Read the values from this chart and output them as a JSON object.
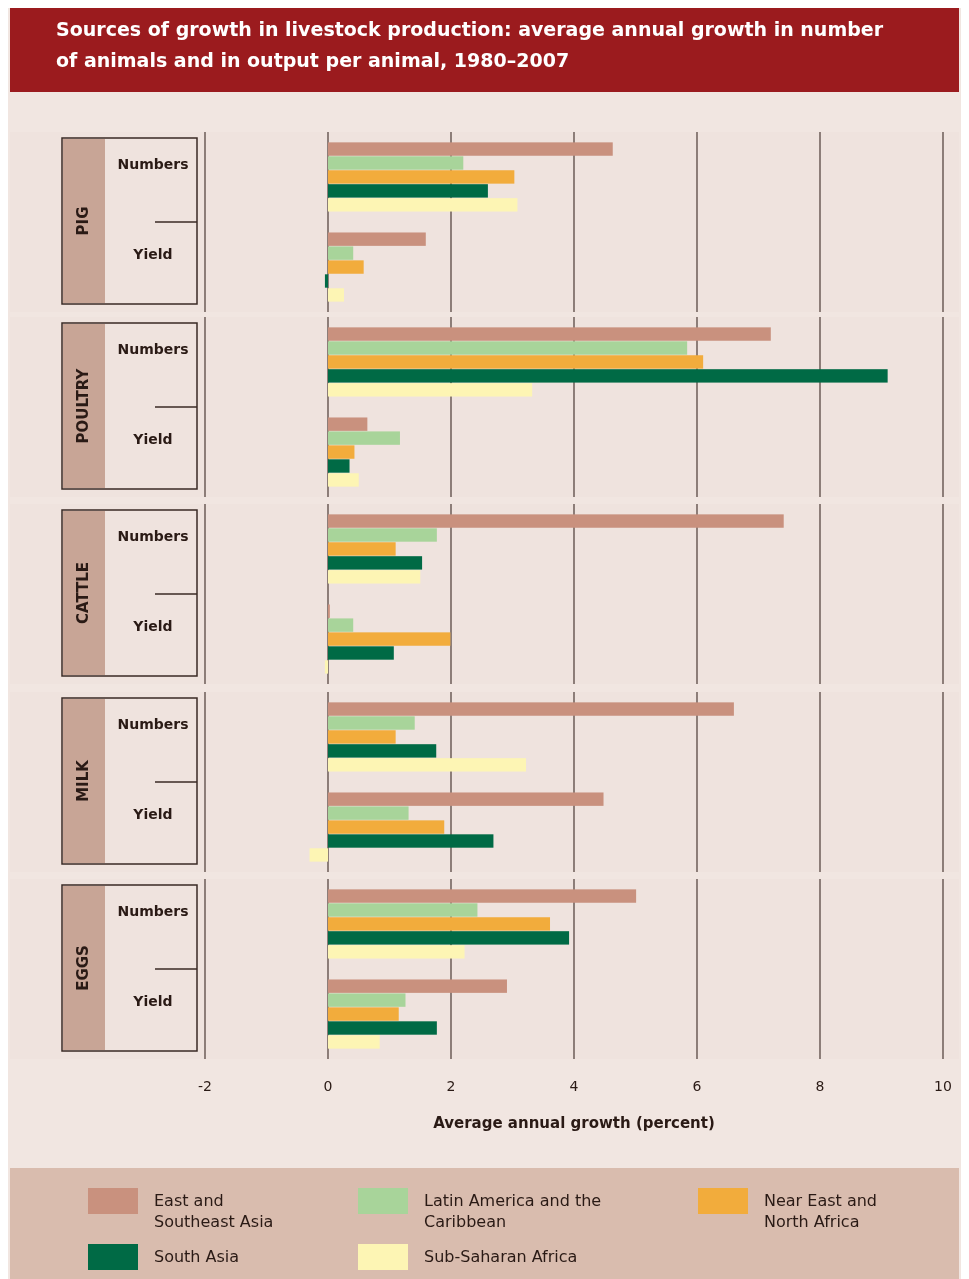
{
  "chart_data": [
    {
      "type": "bar",
      "orientation": "horizontal",
      "title": "Sources of growth in livestock production: average annual growth in number of animals and in output per animal, 1980–2007",
      "ylabel": "PIG",
      "categories": [
        "Numbers",
        "Yield"
      ],
      "xlim": [
        -2,
        10
      ],
      "xticks": [
        -2,
        0,
        2,
        4,
        6,
        8,
        10
      ],
      "grid": "x",
      "tick_labels": "y",
      "series": [
        {
          "color": "#c9917e",
          "values": [
            4.63,
            1.59
          ]
        },
        {
          "color": "#a8d49a",
          "values": [
            2.2,
            0.41
          ]
        },
        {
          "color": "#f2ac3c",
          "values": [
            3.03,
            0.58
          ]
        },
        {
          "color": "#006a45",
          "values": [
            2.6,
            -0.05
          ]
        },
        {
          "color": "#fdf5b4",
          "values": [
            3.08,
            0.26
          ]
        }
      ]
    },
    {
      "type": "bar",
      "orientation": "horizontal",
      "ylabel": "POULTRY",
      "categories": [
        "Numbers",
        "Yield"
      ],
      "xlim": [
        -2,
        10
      ],
      "xticks": [
        -2,
        0,
        2,
        4,
        6,
        8,
        10
      ],
      "grid": "x",
      "tick_labels": "y",
      "series": [
        {
          "color": "#c9917e",
          "values": [
            7.2,
            0.64
          ]
        },
        {
          "color": "#a8d49a",
          "values": [
            5.84,
            1.17
          ]
        },
        {
          "color": "#f2ac3c",
          "values": [
            6.1,
            0.43
          ]
        },
        {
          "color": "#006a45",
          "values": [
            9.1,
            0.35
          ]
        },
        {
          "color": "#fdf5b4",
          "values": [
            3.32,
            0.5
          ]
        }
      ]
    },
    {
      "type": "bar",
      "orientation": "horizontal",
      "ylabel": "CATTLE",
      "categories": [
        "Numbers",
        "Yield"
      ],
      "xlim": [
        -2,
        10
      ],
      "xticks": [
        -2,
        0,
        2,
        4,
        6,
        8,
        10
      ],
      "grid": "x",
      "tick_labels": "y",
      "series": [
        {
          "color": "#c9917e",
          "values": [
            7.41,
            0.03
          ]
        },
        {
          "color": "#a8d49a",
          "values": [
            1.77,
            0.41
          ]
        },
        {
          "color": "#f2ac3c",
          "values": [
            1.1,
            1.99
          ]
        },
        {
          "color": "#006a45",
          "values": [
            1.53,
            1.07
          ]
        },
        {
          "color": "#fdf5b4",
          "values": [
            1.5,
            -0.05
          ]
        }
      ]
    },
    {
      "type": "bar",
      "orientation": "horizontal",
      "ylabel": "MILK",
      "categories": [
        "Numbers",
        "Yield"
      ],
      "xlim": [
        -2,
        10
      ],
      "xticks": [
        -2,
        0,
        2,
        4,
        6,
        8,
        10
      ],
      "grid": "x",
      "tick_labels": "y",
      "series": [
        {
          "color": "#c9917e",
          "values": [
            6.6,
            4.48
          ]
        },
        {
          "color": "#a8d49a",
          "values": [
            1.41,
            1.31
          ]
        },
        {
          "color": "#f2ac3c",
          "values": [
            1.1,
            1.89
          ]
        },
        {
          "color": "#006a45",
          "values": [
            1.76,
            2.69
          ]
        },
        {
          "color": "#fdf5b4",
          "values": [
            3.22,
            -0.3
          ]
        }
      ]
    },
    {
      "type": "bar",
      "orientation": "horizontal",
      "ylabel": "EGGS",
      "xlabel": "Average annual growth (percent)",
      "categories": [
        "Numbers",
        "Yield"
      ],
      "xlim": [
        -2,
        10
      ],
      "xticks": [
        -2,
        0,
        2,
        4,
        6,
        8,
        10
      ],
      "grid": "x",
      "legend": "bottom",
      "series": [
        {
          "name": "East and Southeast Asia",
          "color": "#c9917e",
          "values": [
            5.01,
            2.91
          ]
        },
        {
          "name": "Latin America and the Caribbean",
          "color": "#a8d49a",
          "values": [
            2.43,
            1.26
          ]
        },
        {
          "name": "Near East and North Africa",
          "color": "#f2ac3c",
          "values": [
            3.61,
            1.15
          ]
        },
        {
          "name": "South Asia",
          "color": "#006a45",
          "values": [
            3.92,
            1.77
          ]
        },
        {
          "name": "Sub-Saharan Africa",
          "color": "#fdf5b4",
          "values": [
            2.22,
            0.84
          ]
        }
      ]
    }
  ]
}
